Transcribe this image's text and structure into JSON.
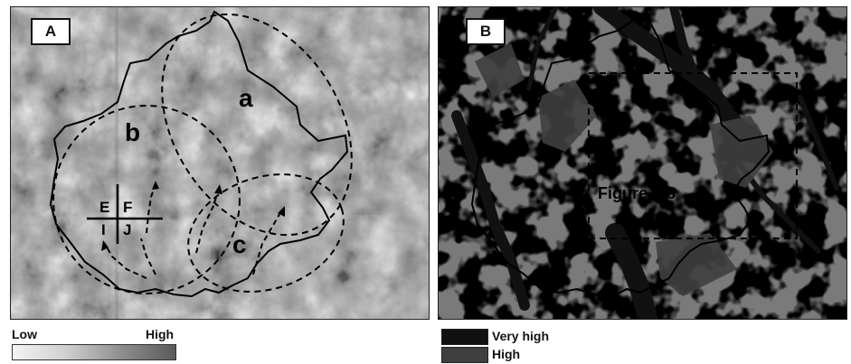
{
  "panel_a": {
    "tag": "A",
    "zone_labels": {
      "a": "a",
      "b": "b",
      "c": "c"
    },
    "grid_labels": {
      "e": "E",
      "f": "F",
      "i": "I",
      "j": "J"
    }
  },
  "panel_b": {
    "tag": "B",
    "inset_label": "Figure 7-8"
  },
  "legend_a": {
    "low": "Low",
    "high": "High"
  },
  "legend_b": {
    "items": [
      {
        "label": "Very high",
        "color": "#111111"
      },
      {
        "label": "High",
        "color": "#3f3f3f"
      }
    ]
  },
  "colors": {
    "background_b": "#7a7a7a",
    "outline": "#000000"
  },
  "icons": [
    "dashed-ellipse",
    "flow-arrow",
    "boundary-outline"
  ]
}
